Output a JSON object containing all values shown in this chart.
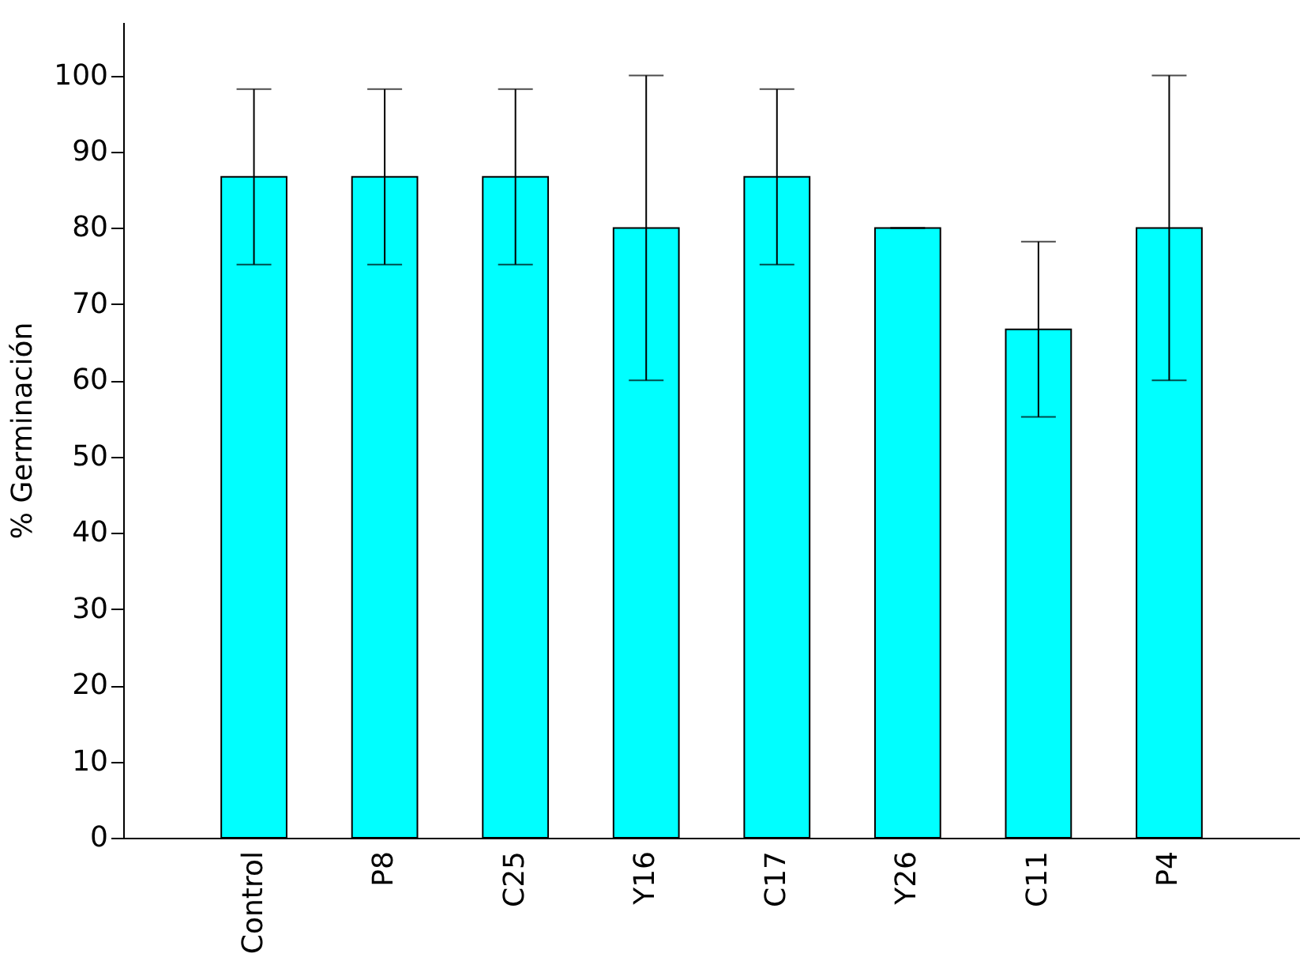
{
  "chart_data": {
    "type": "bar",
    "ylabel": "% Germinación",
    "categories": [
      "Control",
      "P8",
      "C25",
      "Y16",
      "C17",
      "Y26",
      "C11",
      "P4"
    ],
    "values": [
      86.7,
      86.7,
      86.7,
      80,
      86.7,
      80,
      66.7,
      80
    ],
    "errors": [
      11.5,
      11.5,
      11.5,
      20,
      11.5,
      0,
      11.5,
      20
    ],
    "color": "#00ffff",
    "ylim": [
      0,
      107
    ],
    "yticks": [
      0,
      10,
      20,
      30,
      40,
      50,
      60,
      70,
      80,
      90,
      100
    ],
    "grid": false
  }
}
